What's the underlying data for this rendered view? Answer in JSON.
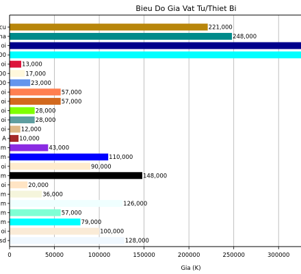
{
  "chart_data": {
    "type": "bar",
    "orientation": "horizontal",
    "title": "Bieu Do Gia Vat Tu/Thiet Bi",
    "xlabel": "Gia (K)",
    "ylabel": "",
    "xlim": [
      0,
      325000
    ],
    "x_ticks": [
      0,
      50000,
      100000,
      150000,
      200000,
      250000,
      300000
    ],
    "x_tick_labels": [
      "0",
      "50000",
      "100000",
      "150000",
      "200000",
      "250000",
      "300000"
    ],
    "grid": "x",
    "categories": [
      "cu",
      "na",
      "oi",
      "00",
      "oi",
      "00",
      "00",
      "oi",
      "oi",
      "oi",
      "oi",
      "oi",
      "A",
      "m",
      "m",
      "oi",
      "m",
      "oi",
      "m",
      "m",
      "m",
      "m",
      "oi",
      "sd"
    ],
    "values": [
      221000,
      248000,
      330000,
      330000,
      13000,
      17000,
      23000,
      57000,
      57000,
      28000,
      28000,
      12000,
      10000,
      43000,
      110000,
      90000,
      148000,
      20000,
      36000,
      126000,
      57000,
      79000,
      100000,
      128000
    ],
    "data_labels": [
      "221,000",
      "248,000",
      "",
      "",
      "13,000",
      "17,000",
      "23,000",
      "57,000",
      "57,000",
      "28,000",
      "28,000",
      "12,000",
      "10,000",
      "43,000",
      "110,000",
      "90,000",
      "148,000",
      "20,000",
      "36,000",
      "126,000",
      "57,000",
      "79,000",
      "100,000",
      "128,000"
    ],
    "colors": [
      "#b8860b",
      "#008b8b",
      "#00008b",
      "#00ffff",
      "#dc143c",
      "#fff8dc",
      "#6495ed",
      "#ff7f50",
      "#d2691e",
      "#7fff00",
      "#5f9ea0",
      "#deb887",
      "#a52a2a",
      "#8a2be2",
      "#0000ff",
      "#ffebcd",
      "#000000",
      "#ffe4c4",
      "#f5f5dc",
      "#f0ffff",
      "#7fffd4",
      "#00ffff",
      "#faebd7",
      "#f0f8ff"
    ]
  }
}
